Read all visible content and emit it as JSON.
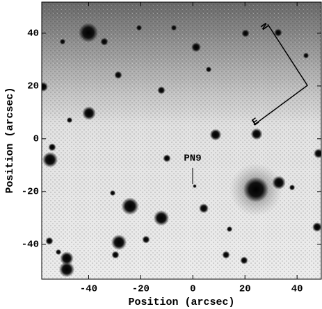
{
  "chart_data": {
    "type": "image",
    "x_label": "Position (arcsec)",
    "y_label": "Position (arcsec)",
    "xlim": [
      -58,
      49.3
    ],
    "ylim": [
      -53.2,
      51.8
    ],
    "xticks": [
      -40,
      -20,
      0,
      20,
      40
    ],
    "yticks": [
      -40,
      -20,
      0,
      20,
      40
    ],
    "annotations": {
      "object": "PN9",
      "north": "N",
      "east": "E"
    }
  }
}
